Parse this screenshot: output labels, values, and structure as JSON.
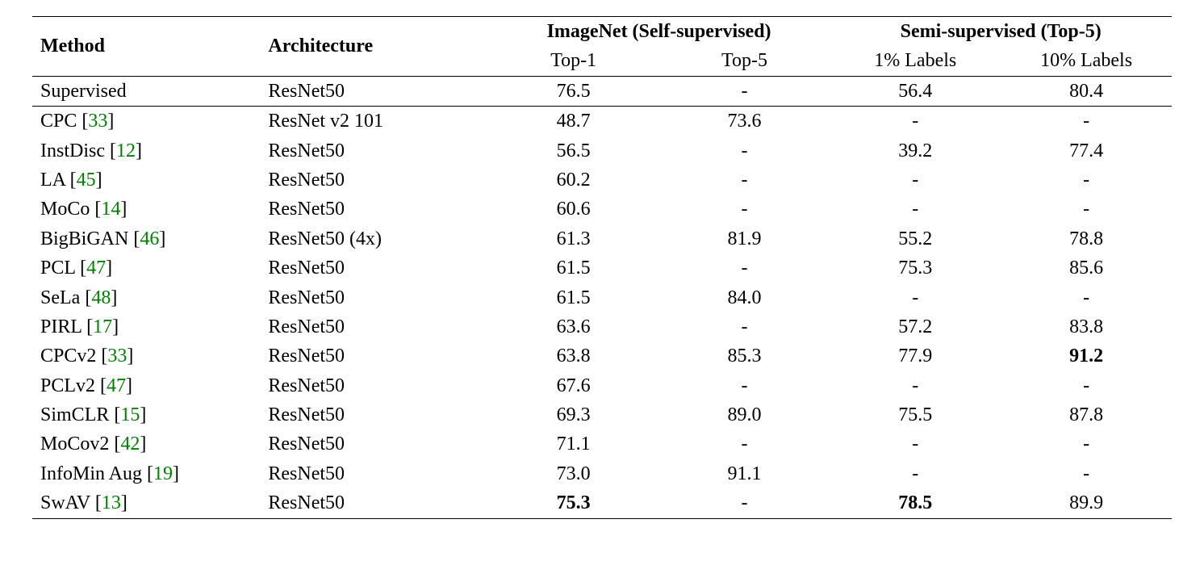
{
  "colors": {
    "background": "#ffffff",
    "text": "#000000",
    "cite_number": "#008000",
    "rule": "#000000"
  },
  "typography": {
    "font_family": "Times New Roman",
    "base_fontsize_pt": 18,
    "bold_weight": 700
  },
  "table": {
    "type": "table",
    "header": {
      "row1": {
        "method": "Method",
        "architecture": "Architecture",
        "imagenet_group": "ImageNet (Self-supervised)",
        "semi_group": "Semi-supervised (Top-5)"
      },
      "row2": {
        "top1": "Top-1",
        "top5": "Top-5",
        "labels1": "1% Labels",
        "labels10": "10% Labels"
      }
    },
    "rows": [
      {
        "method": "Supervised",
        "cite": null,
        "arch": "ResNet50",
        "top1": "76.5",
        "top5": "-",
        "l1": "56.4",
        "l10": "80.4",
        "bold": [],
        "rule_above": true
      },
      {
        "method": "CPC",
        "cite": "33",
        "arch": "ResNet v2 101",
        "top1": "48.7",
        "top5": "73.6",
        "l1": "-",
        "l10": "-",
        "bold": [],
        "rule_above": true
      },
      {
        "method": "InstDisc",
        "cite": "12",
        "arch": "ResNet50",
        "top1": "56.5",
        "top5": "-",
        "l1": "39.2",
        "l10": "77.4",
        "bold": []
      },
      {
        "method": "LA",
        "cite": "45",
        "arch": "ResNet50",
        "top1": "60.2",
        "top5": "-",
        "l1": "-",
        "l10": "-",
        "bold": []
      },
      {
        "method": "MoCo",
        "cite": "14",
        "arch": "ResNet50",
        "top1": "60.6",
        "top5": "-",
        "l1": "-",
        "l10": "-",
        "bold": []
      },
      {
        "method": "BigBiGAN",
        "cite": "46",
        "arch": "ResNet50 (4x)",
        "top1": "61.3",
        "top5": "81.9",
        "l1": "55.2",
        "l10": "78.8",
        "bold": []
      },
      {
        "method": "PCL",
        "cite": "47",
        "arch": "ResNet50",
        "top1": "61.5",
        "top5": "-",
        "l1": "75.3",
        "l10": "85.6",
        "bold": []
      },
      {
        "method": "SeLa",
        "cite": "48",
        "arch": "ResNet50",
        "top1": "61.5",
        "top5": "84.0",
        "l1": "-",
        "l10": "-",
        "bold": []
      },
      {
        "method": "PIRL",
        "cite": "17",
        "arch": "ResNet50",
        "top1": "63.6",
        "top5": "-",
        "l1": "57.2",
        "l10": "83.8",
        "bold": []
      },
      {
        "method": "CPCv2",
        "cite": "33",
        "arch": "ResNet50",
        "top1": "63.8",
        "top5": "85.3",
        "l1": "77.9",
        "l10": "91.2",
        "bold": [
          "l10"
        ]
      },
      {
        "method": "PCLv2",
        "cite": "47",
        "arch": "ResNet50",
        "top1": "67.6",
        "top5": "-",
        "l1": "-",
        "l10": "-",
        "bold": []
      },
      {
        "method": "SimCLR",
        "cite": "15",
        "arch": "ResNet50",
        "top1": "69.3",
        "top5": "89.0",
        "l1": "75.5",
        "l10": "87.8",
        "bold": []
      },
      {
        "method": "MoCov2",
        "cite": "42",
        "arch": "ResNet50",
        "top1": "71.1",
        "top5": "-",
        "l1": "-",
        "l10": "-",
        "bold": []
      },
      {
        "method": "InfoMin Aug",
        "cite": "19",
        "arch": "ResNet50",
        "top1": "73.0",
        "top5": "91.1",
        "l1": "-",
        "l10": "-",
        "bold": []
      },
      {
        "method": "SwAV",
        "cite": "13",
        "arch": "ResNet50",
        "top1": "75.3",
        "top5": "-",
        "l1": "78.5",
        "l10": "89.9",
        "bold": [
          "top1",
          "l1"
        ]
      }
    ]
  }
}
